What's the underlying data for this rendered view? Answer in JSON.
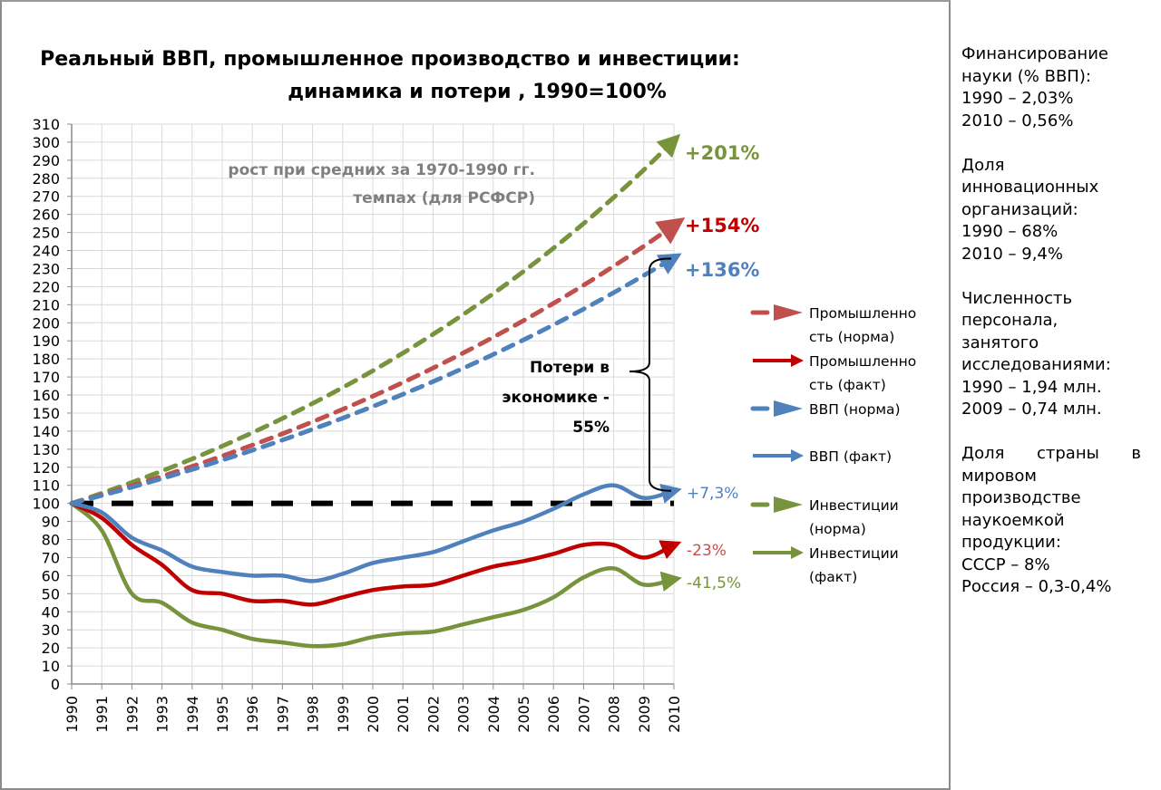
{
  "chart_data": {
    "type": "line",
    "title": [
      "Реальный ВВП, промышленное производство и инвестиции:",
      "динамика и потери , 1990=100%"
    ],
    "xlabel": "",
    "ylabel": "",
    "ylim": [
      0,
      310
    ],
    "ytick_step": 10,
    "x": [
      1990,
      1991,
      1992,
      1993,
      1994,
      1995,
      1996,
      1997,
      1998,
      1999,
      2000,
      2001,
      2002,
      2003,
      2004,
      2005,
      2006,
      2007,
      2008,
      2009,
      2010
    ],
    "grid": true,
    "baseline": {
      "value": 100,
      "style": "dashed",
      "color": "#000000"
    },
    "series": [
      {
        "name": "Промышленность (норма)",
        "legend": [
          "Промышленно",
          "сть (норма)"
        ],
        "style": "dashed",
        "color": "#c0504d",
        "growth_rate": 1.0477,
        "end_value": 254,
        "end_label": "+154%",
        "label_color": "#c00000"
      },
      {
        "name": "Промышленность (факт)",
        "legend": [
          "Промышленно",
          "сть (факт)"
        ],
        "style": "solid",
        "color": "#c00000",
        "values": [
          100,
          92,
          77,
          66,
          52,
          50,
          46,
          46,
          44,
          48,
          52,
          54,
          55,
          60,
          65,
          68,
          72,
          77,
          77,
          70,
          77
        ],
        "end_label": "-23%",
        "label_color": "#c0504d"
      },
      {
        "name": "ВВП (норма)",
        "legend": [
          "ВВП (норма)"
        ],
        "style": "dashed",
        "color": "#4f81bd",
        "growth_rate": 1.0439,
        "end_value": 236,
        "end_label": "+136%",
        "label_color": "#4f81bd"
      },
      {
        "name": "ВВП (факт)",
        "legend": [
          "ВВП (факт)"
        ],
        "style": "solid",
        "color": "#4f81bd",
        "values": [
          100,
          95,
          81,
          74,
          65,
          62,
          60,
          60,
          57,
          61,
          67,
          70,
          73,
          79,
          85,
          90,
          97,
          105,
          110,
          103,
          107
        ],
        "end_label": "+7,3%",
        "label_color": "#4f81bd"
      },
      {
        "name": "Инвестиции (норма)",
        "legend": [
          "Инвестиции",
          "(норма)"
        ],
        "style": "dashed",
        "color": "#77933c",
        "growth_rate": 1.0566,
        "end_value": 301,
        "end_label": "+201%",
        "label_color": "#77933c"
      },
      {
        "name": "Инвестиции (факт)",
        "legend": [
          "Инвестиции",
          "(факт)"
        ],
        "style": "solid",
        "color": "#77933c",
        "values": [
          100,
          85,
          50,
          45,
          34,
          30,
          25,
          23,
          21,
          22,
          26,
          28,
          29,
          33,
          37,
          41,
          48,
          59,
          64,
          55,
          58
        ],
        "end_label": "-41,5%",
        "label_color": "#77933c"
      }
    ],
    "annotations": {
      "norm_note": [
        "рост при средних за 1970-1990 гг.",
        "темпах (для РСФСР)"
      ],
      "loss_note": [
        "Потери в",
        "экономике -",
        "55%"
      ],
      "loss_brace_range": [
        107,
        236
      ]
    },
    "legend_position": "right"
  },
  "side_panel": {
    "blocks": [
      {
        "lines": [
          "Финансирование",
          "науки (% ВВП):",
          "1990 – 2,03%",
          "2010 – 0,56%"
        ]
      },
      {
        "lines": [
          "Доля",
          "инновационных",
          "организаций:",
          "1990 – 68%",
          "2010 – 9,4%"
        ]
      },
      {
        "lines": [
          "Численность",
          "персонала,",
          "занятого",
          "исследованиями:",
          "1990 – 1,94 млн.",
          "2009 – 0,74 млн."
        ]
      },
      {
        "lines": [
          "Доля страны в",
          "мировом",
          "производстве",
          "наукоемкой",
          "продукции:",
          "СССР – 8%",
          "Россия – 0,3-0,4%"
        ],
        "first_justified": true
      }
    ]
  }
}
